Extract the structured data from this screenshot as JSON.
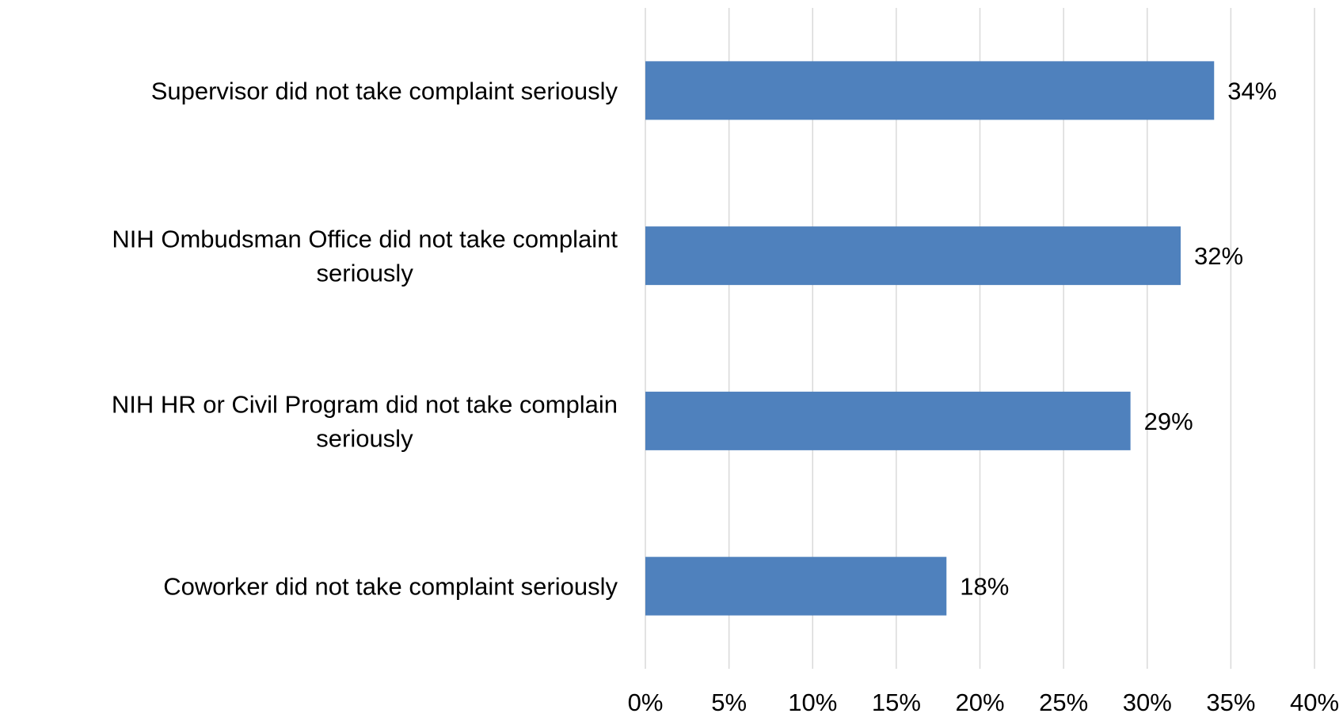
{
  "chart_data": {
    "type": "bar",
    "orientation": "horizontal",
    "title": "",
    "xlabel": "",
    "ylabel": "",
    "categories": [
      [
        "Supervisor did not take complaint seriously"
      ],
      [
        "NIH Ombudsman Office did not take complaint",
        "seriously"
      ],
      [
        "NIH HR or Civil Program did not take complain",
        "seriously"
      ],
      [
        "Coworker did not take complaint seriously"
      ]
    ],
    "values": [
      34,
      32,
      29,
      18
    ],
    "data_labels": [
      "34%",
      "32%",
      "29%",
      "18%"
    ],
    "xlim": [
      0,
      40
    ],
    "x_ticks": [
      0,
      5,
      10,
      15,
      20,
      25,
      30,
      35,
      40
    ],
    "x_tick_labels": [
      "0%",
      "5%",
      "10%",
      "15%",
      "20%",
      "25%",
      "30%",
      "35%",
      "40%"
    ],
    "grid": true,
    "legend": "none",
    "bar_color": "#4f81bd"
  }
}
